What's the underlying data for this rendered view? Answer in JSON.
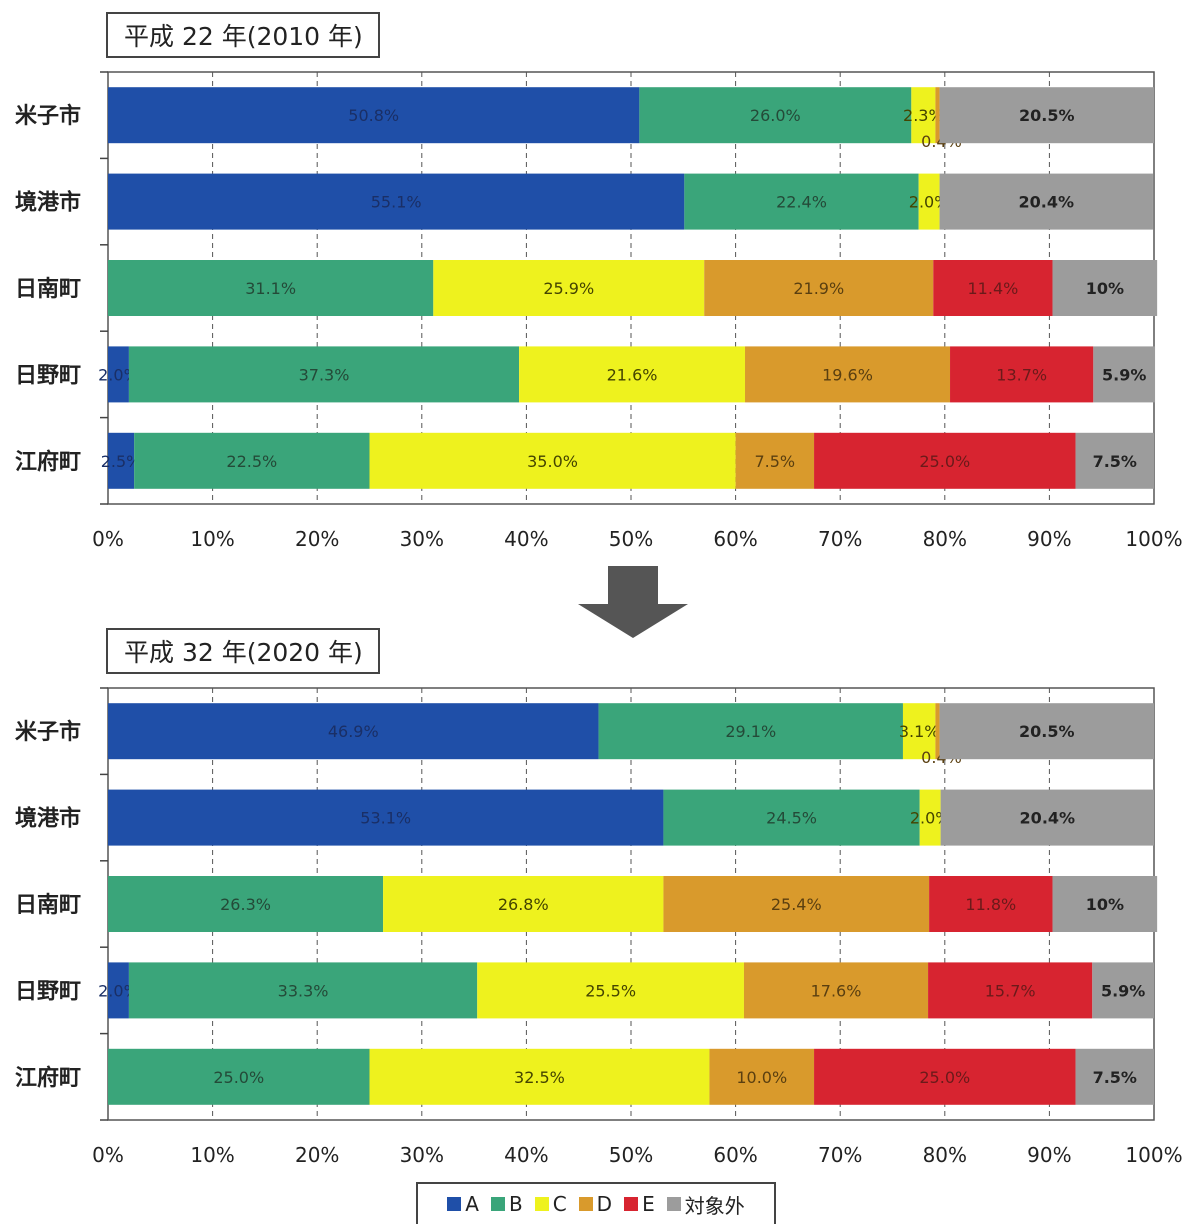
{
  "legend": [
    {
      "label": "A",
      "color": "#1f4fa8"
    },
    {
      "label": "B",
      "color": "#3aa57a"
    },
    {
      "label": "C",
      "color": "#eef21e"
    },
    {
      "label": "D",
      "color": "#d99a2c"
    },
    {
      "label": "E",
      "color": "#d72430"
    },
    {
      "label": "対象外",
      "color": "#9c9c9c"
    }
  ],
  "chart_data": [
    {
      "type": "bar",
      "orientation": "horizontal",
      "stacked": true,
      "title": "平成 22 年(2010 年)",
      "categories": [
        "米子市",
        "境港市",
        "日南町",
        "日野町",
        "江府町"
      ],
      "xlim": [
        0,
        100
      ],
      "xticks": [
        "0%",
        "10%",
        "20%",
        "30%",
        "40%",
        "50%",
        "60%",
        "70%",
        "80%",
        "90%",
        "100%"
      ],
      "series": [
        {
          "name": "A",
          "values": [
            50.8,
            55.1,
            0,
            2.0,
            2.5
          ],
          "labels": [
            "50.8%",
            "55.1%",
            "",
            "2.0%",
            "2.5%"
          ]
        },
        {
          "name": "B",
          "values": [
            26.0,
            22.4,
            31.1,
            37.3,
            22.5
          ],
          "labels": [
            "26.0%",
            "22.4%",
            "31.1%",
            "37.3%",
            "22.5%"
          ]
        },
        {
          "name": "C",
          "values": [
            2.3,
            2.0,
            25.9,
            21.6,
            35.0
          ],
          "labels": [
            "2.3%",
            "2.0%",
            "25.9%",
            "21.6%",
            "35.0%"
          ]
        },
        {
          "name": "D",
          "values": [
            0.4,
            0,
            21.9,
            19.6,
            7.5
          ],
          "labels": [
            "0.4%",
            "",
            "21.9%",
            "19.6%",
            "7.5%"
          ]
        },
        {
          "name": "E",
          "values": [
            0,
            0,
            11.4,
            13.7,
            25.0
          ],
          "labels": [
            "",
            "",
            "11.4%",
            "13.7%",
            "25.0%"
          ]
        },
        {
          "name": "対象外",
          "values": [
            20.5,
            20.4,
            10,
            5.9,
            7.5
          ],
          "labels": [
            "20.5%",
            "20.4%",
            "10%",
            "5.9%",
            "7.5%"
          ]
        }
      ]
    },
    {
      "type": "bar",
      "orientation": "horizontal",
      "stacked": true,
      "title": "平成 32 年(2020 年)",
      "categories": [
        "米子市",
        "境港市",
        "日南町",
        "日野町",
        "江府町"
      ],
      "xlim": [
        0,
        100
      ],
      "xticks": [
        "0%",
        "10%",
        "20%",
        "30%",
        "40%",
        "50%",
        "60%",
        "70%",
        "80%",
        "90%",
        "100%"
      ],
      "series": [
        {
          "name": "A",
          "values": [
            46.9,
            53.1,
            0,
            2.0,
            0
          ],
          "labels": [
            "46.9%",
            "53.1%",
            "",
            "2.0%",
            ""
          ]
        },
        {
          "name": "B",
          "values": [
            29.1,
            24.5,
            26.3,
            33.3,
            25.0
          ],
          "labels": [
            "29.1%",
            "24.5%",
            "26.3%",
            "33.3%",
            "25.0%"
          ]
        },
        {
          "name": "C",
          "values": [
            3.1,
            2.0,
            26.8,
            25.5,
            32.5
          ],
          "labels": [
            "3.1%",
            "2.0%",
            "26.8%",
            "25.5%",
            "32.5%"
          ]
        },
        {
          "name": "D",
          "values": [
            0.4,
            0,
            25.4,
            17.6,
            10.0
          ],
          "labels": [
            "0.4%",
            "",
            "25.4%",
            "17.6%",
            "10.0%"
          ]
        },
        {
          "name": "E",
          "values": [
            0,
            0,
            11.8,
            15.7,
            25.0
          ],
          "labels": [
            "",
            "",
            "11.8%",
            "15.7%",
            "25.0%"
          ]
        },
        {
          "name": "対象外",
          "values": [
            20.5,
            20.4,
            10,
            5.9,
            7.5
          ],
          "labels": [
            "20.5%",
            "20.4%",
            "10%",
            "5.9%",
            "7.5%"
          ]
        }
      ]
    }
  ]
}
